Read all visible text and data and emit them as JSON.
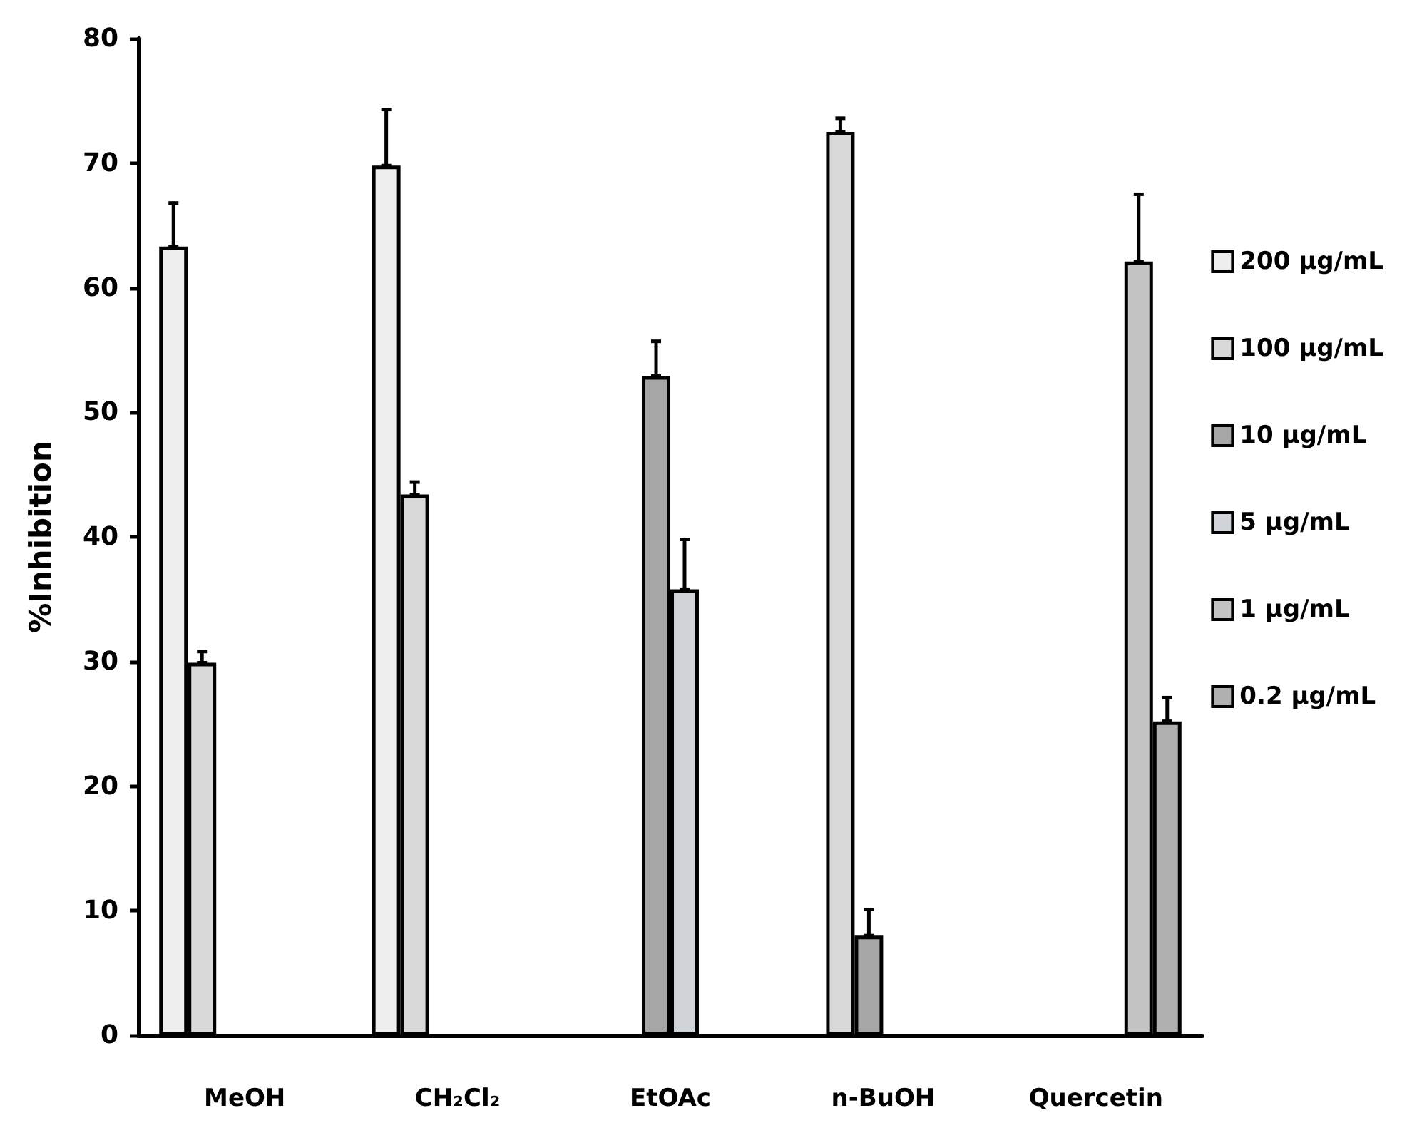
{
  "chart_data": {
    "type": "bar",
    "ylabel": "%Inhibition",
    "categories": [
      "MeOH",
      "CH₂Cl₂",
      "EtOAc",
      "n-BuOH",
      "Quercetin"
    ],
    "series": [
      {
        "name": "200 μg/mL",
        "color": "#eeeeee",
        "values": [
          63.3,
          69.8,
          null,
          null,
          null
        ],
        "errors": [
          [
            63.3,
            66.8
          ],
          [
            69.8,
            74.3
          ],
          null,
          null,
          null
        ]
      },
      {
        "name": "100 μg/mL",
        "color": "#d9d9d9",
        "values": [
          29.9,
          43.4,
          null,
          72.5,
          null
        ],
        "errors": [
          [
            29.9,
            30.8
          ],
          [
            43.4,
            44.4
          ],
          null,
          [
            72.5,
            73.6
          ],
          null
        ]
      },
      {
        "name": "10 μg/mL",
        "color": "#a6a6a6",
        "values": [
          null,
          null,
          52.9,
          8.0,
          null
        ],
        "errors": [
          null,
          null,
          [
            52.9,
            55.7
          ],
          [
            8.0,
            10.1
          ],
          null
        ]
      },
      {
        "name": "5 μg/mL",
        "color": "#d0d4d8",
        "values": [
          null,
          null,
          35.8,
          null,
          null
        ],
        "errors": [
          null,
          null,
          [
            35.8,
            39.8
          ],
          null,
          null
        ]
      },
      {
        "name": "1 μg/mL",
        "color": "#c4c4c4",
        "values": [
          null,
          null,
          null,
          null,
          62.1
        ],
        "errors": [
          null,
          null,
          null,
          null,
          [
            62.1,
            67.5
          ]
        ]
      },
      {
        "name": "0.2 μg/mL",
        "color": "#b0b0b0",
        "values": [
          null,
          null,
          null,
          null,
          25.2
        ],
        "errors": [
          null,
          null,
          null,
          null,
          [
            25.2,
            27.1
          ]
        ]
      }
    ],
    "ylim": [
      0,
      80
    ],
    "yticks": [
      0,
      10,
      20,
      30,
      40,
      50,
      60,
      70,
      80
    ],
    "grid": false,
    "legend": "right"
  }
}
